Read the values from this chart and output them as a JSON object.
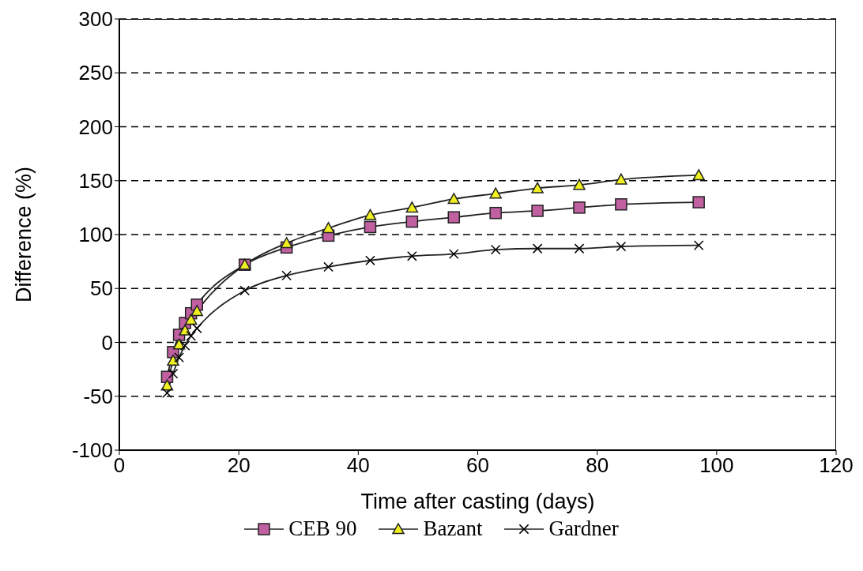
{
  "chart_data": {
    "type": "line",
    "xlabel": "Time after casting (days)",
    "ylabel": "Difference (%)",
    "xlim": [
      0,
      120
    ],
    "xticks": [
      0,
      20,
      40,
      60,
      80,
      100,
      120
    ],
    "ylim": [
      -100,
      300
    ],
    "yticks": [
      -100,
      -50,
      0,
      50,
      100,
      150,
      200,
      250,
      300
    ],
    "grid": "y",
    "legend": "bottom",
    "line_style": "solid",
    "x": [
      8,
      9,
      10,
      11,
      12,
      13,
      21,
      28,
      35,
      42,
      49,
      56,
      63,
      70,
      77,
      84,
      97
    ],
    "series": [
      {
        "name": "CEB 90",
        "color": "#c060a0",
        "marker": "square",
        "values": [
          -32,
          -9,
          7,
          18,
          27,
          35,
          72,
          88,
          99,
          107,
          112,
          116,
          120,
          122,
          125,
          128,
          130
        ]
      },
      {
        "name": "Bazant",
        "color": "#f0f020",
        "marker": "triangle",
        "values": [
          -40,
          -17,
          -2,
          11,
          21,
          29,
          72,
          92,
          106,
          118,
          125,
          133,
          138,
          143,
          146,
          151,
          155
        ]
      },
      {
        "name": "Gardner",
        "color": "#000000",
        "marker": "cross",
        "values": [
          -47,
          -29,
          -14,
          -3,
          6,
          13,
          48,
          62,
          70,
          76,
          80,
          82,
          86,
          87,
          87,
          89,
          90
        ]
      }
    ]
  }
}
